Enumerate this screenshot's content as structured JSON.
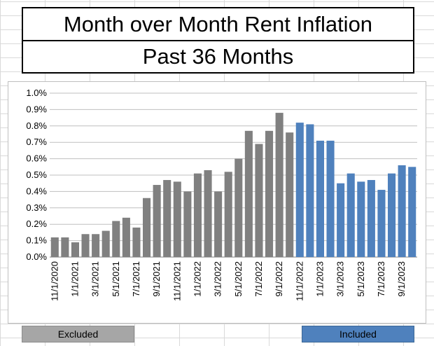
{
  "title": "Month over Month Rent Inflation",
  "subtitle": "Past 36 Months",
  "legend": {
    "excluded": "Excluded",
    "included": "Included"
  },
  "colors": {
    "excluded": "#808080",
    "included": "#4f81bd"
  },
  "chart_data": {
    "type": "bar",
    "y_ticks": [
      "0.0%",
      "0.1%",
      "0.2%",
      "0.3%",
      "0.4%",
      "0.5%",
      "0.6%",
      "0.7%",
      "0.8%",
      "0.9%",
      "1.0%"
    ],
    "x_ticks": [
      "11/1/2020",
      "1/1/2021",
      "3/1/2021",
      "5/1/2021",
      "7/1/2021",
      "9/1/2021",
      "11/1/2021",
      "1/1/2022",
      "3/1/2022",
      "5/1/2022",
      "7/1/2022",
      "9/1/2022",
      "11/1/2022",
      "1/1/2023",
      "3/1/2023",
      "5/1/2023",
      "7/1/2023",
      "9/1/2023"
    ],
    "ylim": [
      0,
      1.0
    ],
    "grid": true,
    "categories": [
      "11/1/2020",
      "12/1/2020",
      "1/1/2021",
      "2/1/2021",
      "3/1/2021",
      "4/1/2021",
      "5/1/2021",
      "6/1/2021",
      "7/1/2021",
      "8/1/2021",
      "9/1/2021",
      "10/1/2021",
      "11/1/2021",
      "12/1/2021",
      "1/1/2022",
      "2/1/2022",
      "3/1/2022",
      "4/1/2022",
      "5/1/2022",
      "6/1/2022",
      "7/1/2022",
      "8/1/2022",
      "9/1/2022",
      "10/1/2022",
      "11/1/2022",
      "12/1/2022",
      "1/1/2023",
      "2/1/2023",
      "3/1/2023",
      "4/1/2023",
      "5/1/2023",
      "6/1/2023",
      "7/1/2023",
      "8/1/2023",
      "9/1/2023",
      "10/1/2023"
    ],
    "values": [
      0.12,
      0.12,
      0.09,
      0.14,
      0.14,
      0.16,
      0.22,
      0.24,
      0.18,
      0.36,
      0.44,
      0.47,
      0.46,
      0.4,
      0.51,
      0.53,
      0.4,
      0.52,
      0.6,
      0.77,
      0.69,
      0.77,
      0.88,
      0.76,
      0.82,
      0.81,
      0.71,
      0.71,
      0.45,
      0.51,
      0.46,
      0.47,
      0.41,
      0.51,
      0.56,
      0.55
    ],
    "groups": [
      "excluded",
      "excluded",
      "excluded",
      "excluded",
      "excluded",
      "excluded",
      "excluded",
      "excluded",
      "excluded",
      "excluded",
      "excluded",
      "excluded",
      "excluded",
      "excluded",
      "excluded",
      "excluded",
      "excluded",
      "excluded",
      "excluded",
      "excluded",
      "excluded",
      "excluded",
      "excluded",
      "excluded",
      "included",
      "included",
      "included",
      "included",
      "included",
      "included",
      "included",
      "included",
      "included",
      "included",
      "included",
      "included"
    ]
  }
}
